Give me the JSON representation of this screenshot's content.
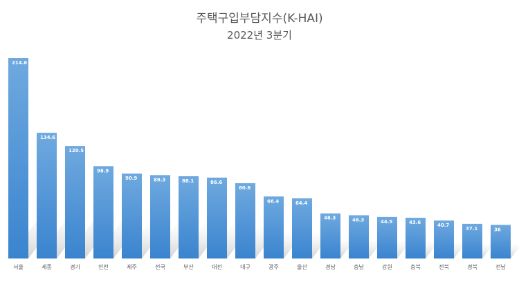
{
  "chart_data": {
    "type": "bar",
    "title": "주택구입부담지수(K-HAI)",
    "subtitle": "2022년 3분기",
    "categories": [
      "서울",
      "세종",
      "경기",
      "인천",
      "제주",
      "전국",
      "부산",
      "대전",
      "대구",
      "광주",
      "울산",
      "경남",
      "충남",
      "강원",
      "충북",
      "전북",
      "경북",
      "전남"
    ],
    "values": [
      214.6,
      134.6,
      120.5,
      98.9,
      90.9,
      89.3,
      88.1,
      86.6,
      80.6,
      66.4,
      64.4,
      48.3,
      46.3,
      44.5,
      43.6,
      40.7,
      37.1,
      36
    ],
    "value_labels": [
      "214.6",
      "134.6",
      "120.5",
      "98.9",
      "90.9",
      "89.3",
      "88.1",
      "86.6",
      "80.6",
      "66.4",
      "64.4",
      "48.3",
      "46.3",
      "44.5",
      "43.6",
      "40.7",
      "37.1",
      "36"
    ],
    "ylim": [
      0,
      214.6
    ],
    "grid": false,
    "legend": "none",
    "colors": {
      "bar_top": "#6fa9df",
      "bar_bottom": "#3a84cf",
      "label": "#ffffff",
      "axis_text": "#595959"
    }
  }
}
